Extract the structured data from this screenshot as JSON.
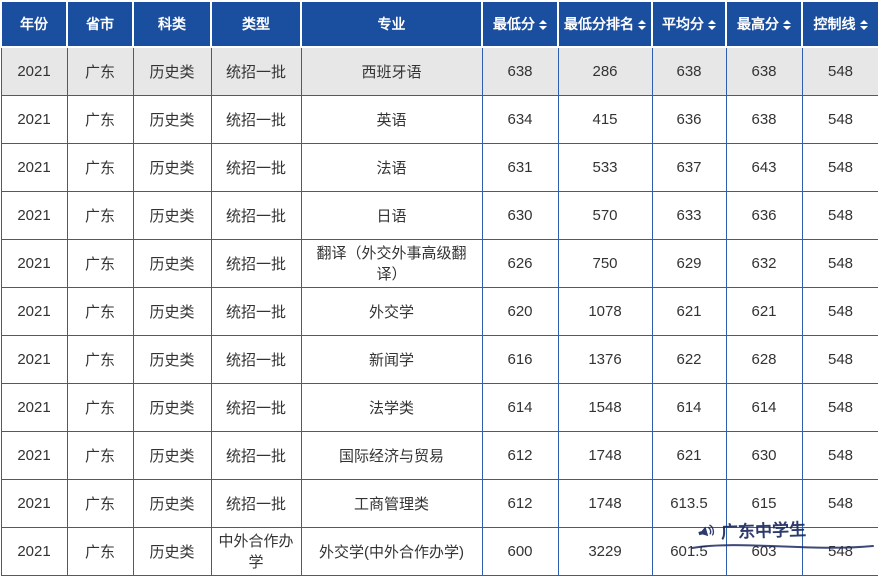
{
  "colors": {
    "header_bg": "#1a4e9e",
    "grid_border": "#2e5fae",
    "shaded_row_bg": "#e7e7e7",
    "body_text": "#333333",
    "header_text": "#ffffff",
    "watermark": "#1c2a60"
  },
  "table": {
    "shaded_row_index": 0,
    "columns": [
      {
        "key": "year",
        "label": "年份",
        "sortable": false
      },
      {
        "key": "province",
        "label": "省市",
        "sortable": false
      },
      {
        "key": "subject_category",
        "label": "科类",
        "sortable": false
      },
      {
        "key": "type",
        "label": "类型",
        "sortable": false
      },
      {
        "key": "major",
        "label": "专业",
        "sortable": false
      },
      {
        "key": "min_score",
        "label": "最低分",
        "sortable": true
      },
      {
        "key": "min_score_rank",
        "label": "最低分排名",
        "sortable": true
      },
      {
        "key": "avg_score",
        "label": "平均分",
        "sortable": true
      },
      {
        "key": "max_score",
        "label": "最高分",
        "sortable": true
      },
      {
        "key": "control_line",
        "label": "控制线",
        "sortable": true
      }
    ],
    "rows": [
      {
        "year": "2021",
        "province": "广东",
        "subject_category": "历史类",
        "type": "统招一批",
        "major": "西班牙语",
        "min_score": "638",
        "min_score_rank": "286",
        "avg_score": "638",
        "max_score": "638",
        "control_line": "548"
      },
      {
        "year": "2021",
        "province": "广东",
        "subject_category": "历史类",
        "type": "统招一批",
        "major": "英语",
        "min_score": "634",
        "min_score_rank": "415",
        "avg_score": "636",
        "max_score": "638",
        "control_line": "548"
      },
      {
        "year": "2021",
        "province": "广东",
        "subject_category": "历史类",
        "type": "统招一批",
        "major": "法语",
        "min_score": "631",
        "min_score_rank": "533",
        "avg_score": "637",
        "max_score": "643",
        "control_line": "548"
      },
      {
        "year": "2021",
        "province": "广东",
        "subject_category": "历史类",
        "type": "统招一批",
        "major": "日语",
        "min_score": "630",
        "min_score_rank": "570",
        "avg_score": "633",
        "max_score": "636",
        "control_line": "548"
      },
      {
        "year": "2021",
        "province": "广东",
        "subject_category": "历史类",
        "type": "统招一批",
        "major": "翻译（外交外事高级翻译）",
        "min_score": "626",
        "min_score_rank": "750",
        "avg_score": "629",
        "max_score": "632",
        "control_line": "548"
      },
      {
        "year": "2021",
        "province": "广东",
        "subject_category": "历史类",
        "type": "统招一批",
        "major": "外交学",
        "min_score": "620",
        "min_score_rank": "1078",
        "avg_score": "621",
        "max_score": "621",
        "control_line": "548"
      },
      {
        "year": "2021",
        "province": "广东",
        "subject_category": "历史类",
        "type": "统招一批",
        "major": "新闻学",
        "min_score": "616",
        "min_score_rank": "1376",
        "avg_score": "622",
        "max_score": "628",
        "control_line": "548"
      },
      {
        "year": "2021",
        "province": "广东",
        "subject_category": "历史类",
        "type": "统招一批",
        "major": "法学类",
        "min_score": "614",
        "min_score_rank": "1548",
        "avg_score": "614",
        "max_score": "614",
        "control_line": "548"
      },
      {
        "year": "2021",
        "province": "广东",
        "subject_category": "历史类",
        "type": "统招一批",
        "major": "国际经济与贸易",
        "min_score": "612",
        "min_score_rank": "1748",
        "avg_score": "621",
        "max_score": "630",
        "control_line": "548"
      },
      {
        "year": "2021",
        "province": "广东",
        "subject_category": "历史类",
        "type": "统招一批",
        "major": "工商管理类",
        "min_score": "612",
        "min_score_rank": "1748",
        "avg_score": "613.5",
        "max_score": "615",
        "control_line": "548"
      },
      {
        "year": "2021",
        "province": "广东",
        "subject_category": "历史类",
        "type": "中外合作办学",
        "major": "外交学(中外合作办学)",
        "min_score": "600",
        "min_score_rank": "3229",
        "avg_score": "601.5",
        "max_score": "603",
        "control_line": "548"
      }
    ]
  },
  "watermark": {
    "icon": "megaphone-icon",
    "text": "广东中学生"
  }
}
